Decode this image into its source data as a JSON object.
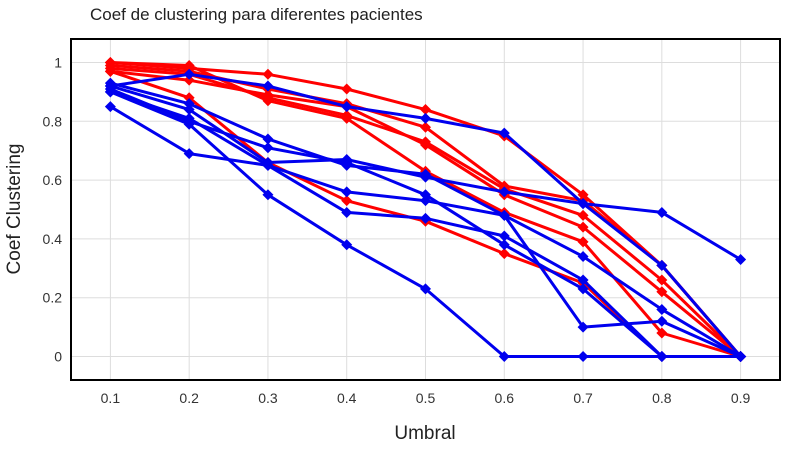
{
  "chart_data": {
    "type": "line",
    "title": "Coef de clustering para diferentes pacientes",
    "xlabel": "Umbral",
    "ylabel": "Coef Clustering",
    "x": [
      0.1,
      0.2,
      0.3,
      0.4,
      0.5,
      0.6,
      0.7,
      0.8,
      0.9
    ],
    "xticks": [
      "0.1",
      "0.2",
      "0.3",
      "0.4",
      "0.5",
      "0.6",
      "0.7",
      "0.8",
      "0.9"
    ],
    "yticks": [
      "0",
      "0.2",
      "0.4",
      "0.6",
      "0.8",
      "1"
    ],
    "xlim": [
      0.05,
      0.95
    ],
    "ylim": [
      -0.08,
      1.08
    ],
    "grid": true,
    "colors": {
      "red_group": "#ff0000",
      "blue_group": "#0000ee"
    },
    "series": [
      {
        "group": "red",
        "values": [
          1.0,
          0.98,
          0.96,
          0.91,
          0.84,
          0.75,
          0.55,
          0.31,
          0.0
        ]
      },
      {
        "group": "red",
        "values": [
          0.99,
          0.97,
          0.91,
          0.86,
          0.78,
          0.58,
          0.53,
          0.31,
          0.0
        ]
      },
      {
        "group": "red",
        "values": [
          0.98,
          0.96,
          0.88,
          0.82,
          0.73,
          0.57,
          0.48,
          0.26,
          0.0
        ]
      },
      {
        "group": "red",
        "values": [
          0.97,
          0.94,
          0.89,
          0.85,
          0.72,
          0.55,
          0.44,
          0.22,
          0.0
        ]
      },
      {
        "group": "red",
        "values": [
          1.0,
          0.99,
          0.87,
          0.81,
          0.63,
          0.49,
          0.39,
          0.08,
          0.0
        ]
      },
      {
        "group": "red",
        "values": [
          0.97,
          0.88,
          0.66,
          0.53,
          0.46,
          0.35,
          0.25,
          0.0,
          0.0
        ]
      },
      {
        "group": "blue",
        "values": [
          0.93,
          0.86,
          0.74,
          0.65,
          0.62,
          0.48,
          0.1,
          0.12,
          0.0
        ]
      },
      {
        "group": "blue",
        "values": [
          0.91,
          0.8,
          0.71,
          0.66,
          0.55,
          0.38,
          0.23,
          0.0,
          0.0
        ]
      },
      {
        "group": "blue",
        "values": [
          0.9,
          0.81,
          0.65,
          0.56,
          0.53,
          0.48,
          0.34,
          0.16,
          0.0
        ]
      },
      {
        "group": "blue",
        "values": [
          0.85,
          0.69,
          0.65,
          0.49,
          0.47,
          0.41,
          0.26,
          0.0,
          0.0
        ]
      },
      {
        "group": "blue",
        "values": [
          0.92,
          0.96,
          0.92,
          0.85,
          0.81,
          0.76,
          0.52,
          0.31,
          0.0
        ]
      },
      {
        "group": "blue",
        "values": [
          0.92,
          0.84,
          0.66,
          0.67,
          0.61,
          0.56,
          0.52,
          0.49,
          0.33
        ]
      },
      {
        "group": "blue",
        "values": [
          0.9,
          0.79,
          0.55,
          0.38,
          0.23,
          0.0,
          0.0,
          0.0,
          0.0
        ]
      }
    ]
  }
}
